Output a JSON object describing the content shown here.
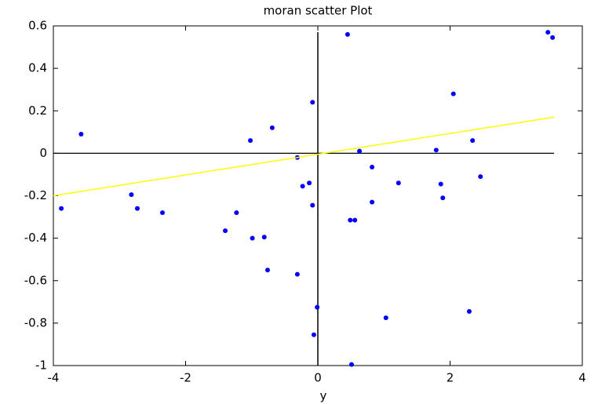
{
  "chart_data": {
    "type": "scatter",
    "title": "moran scatter Plot",
    "x_label": "y",
    "xlim": [
      -4,
      4
    ],
    "ylim": [
      -1,
      0.6
    ],
    "xticks": [
      -4,
      -2,
      0,
      2,
      4
    ],
    "yticks": [
      -1,
      -0.8,
      -0.6,
      -0.4,
      -0.2,
      0,
      0.2,
      0.4,
      0.6
    ],
    "series": [
      {
        "color": "#0000ff",
        "x": [
          -3.88,
          -3.58,
          -2.82,
          -2.73,
          -2.35,
          -1.4,
          -1.23,
          -1.02,
          -0.99,
          -0.81,
          -0.76,
          -0.69,
          -0.31,
          -0.31,
          -0.23,
          -0.13,
          -0.08,
          -0.08,
          -0.06,
          -0.01,
          0.45,
          0.49,
          0.51,
          0.56,
          0.63,
          0.82,
          0.82,
          1.03,
          1.22,
          1.79,
          1.86,
          1.89,
          2.05,
          2.29,
          2.34,
          2.46,
          3.48,
          3.55
        ],
        "values": [
          -0.26,
          0.09,
          -0.195,
          -0.26,
          -0.28,
          -0.365,
          -0.28,
          0.06,
          -0.4,
          -0.395,
          -0.55,
          0.12,
          -0.02,
          -0.57,
          -0.155,
          -0.14,
          0.24,
          -0.245,
          -0.855,
          -0.725,
          0.56,
          -0.315,
          -0.995,
          -0.315,
          0.01,
          -0.065,
          -0.23,
          -0.775,
          -0.14,
          0.015,
          -0.145,
          -0.21,
          0.28,
          -0.745,
          0.06,
          -0.11,
          0.57,
          0.545
        ]
      },
      {
        "type": "line",
        "color": "#ffff00",
        "x": [
          -4,
          3.57
        ],
        "values": [
          -0.2,
          0.17
        ]
      }
    ]
  }
}
